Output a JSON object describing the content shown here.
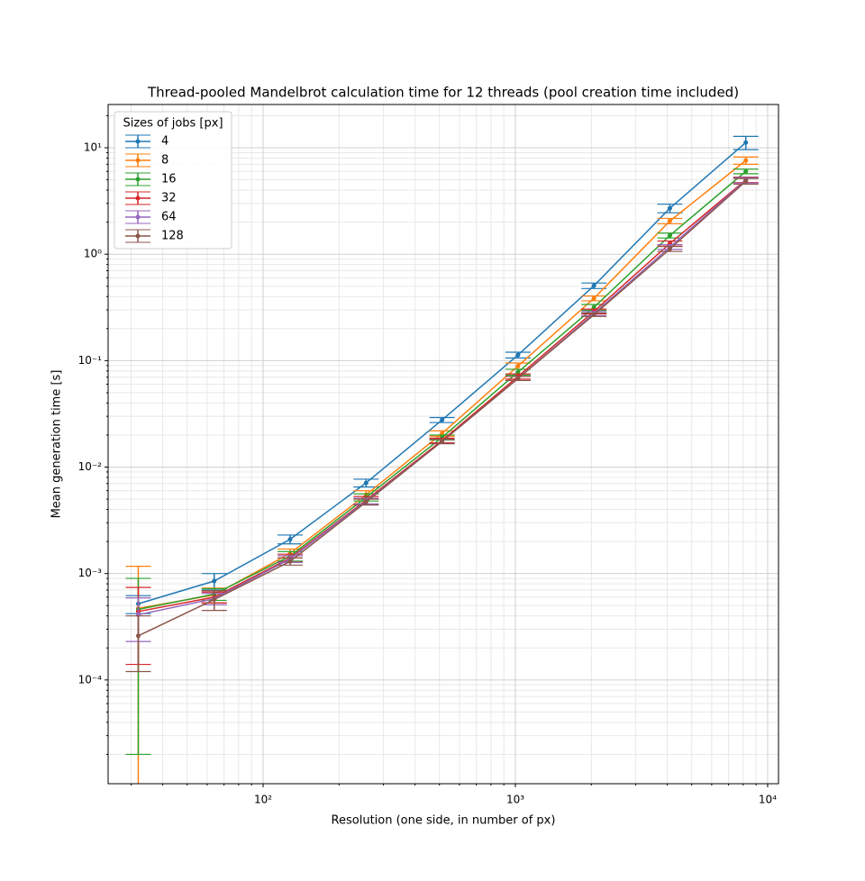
{
  "chart_data": {
    "type": "line",
    "title": "Thread-pooled Mandelbrot calculation time for 12 threads (pool creation time included)",
    "xlabel": "Resolution (one side, in number of px)",
    "ylabel": "Mean generation time [s]",
    "x": [
      32,
      64,
      128,
      256,
      512,
      1024,
      2048,
      4096,
      8192
    ],
    "series": [
      {
        "name": "4",
        "color": "#1f77b4",
        "values": [
          0.00052,
          0.00085,
          0.0021,
          0.0071,
          0.0277,
          0.113,
          0.506,
          2.7,
          11.2
        ],
        "errors": [
          0.0001,
          0.00015,
          0.0002,
          0.0006,
          0.0015,
          0.007,
          0.03,
          0.25,
          1.6
        ]
      },
      {
        "name": "8",
        "color": "#ff7f0e",
        "values": [
          0.00047,
          0.00063,
          0.00155,
          0.0055,
          0.0207,
          0.089,
          0.385,
          2.05,
          7.6
        ],
        "errors": [
          0.0007,
          0.0001,
          0.00015,
          0.0005,
          0.0012,
          0.006,
          0.02,
          0.12,
          0.6
        ]
      },
      {
        "name": "16",
        "color": "#2ca02c",
        "values": [
          0.00046,
          0.00064,
          0.00146,
          0.0052,
          0.019,
          0.078,
          0.317,
          1.5,
          6.0
        ],
        "errors": [
          0.00044,
          8e-05,
          0.00015,
          0.0004,
          0.001,
          0.005,
          0.02,
          0.08,
          0.3
        ]
      },
      {
        "name": "32",
        "color": "#d62728",
        "values": [
          0.00044,
          0.0006,
          0.0014,
          0.0049,
          0.0178,
          0.071,
          0.29,
          1.26,
          5.0
        ],
        "errors": [
          0.0003,
          7e-05,
          0.00012,
          0.0004,
          0.0009,
          0.004,
          0.015,
          0.07,
          0.3
        ]
      },
      {
        "name": "64",
        "color": "#9467bd",
        "values": [
          0.00041,
          0.00058,
          0.00137,
          0.0048,
          0.0174,
          0.068,
          0.277,
          1.17,
          4.95
        ],
        "errors": [
          0.00018,
          7e-05,
          0.0001,
          0.0003,
          0.0008,
          0.003,
          0.012,
          0.06,
          0.3
        ]
      },
      {
        "name": "128",
        "color": "#8c564b",
        "values": [
          0.00026,
          0.00057,
          0.0013,
          0.0047,
          0.0174,
          0.068,
          0.27,
          1.12,
          4.85
        ],
        "errors": [
          0.00014,
          0.00012,
          0.0001,
          0.0003,
          0.0008,
          0.003,
          0.01,
          0.06,
          0.3
        ]
      }
    ],
    "xscale": "log",
    "yscale": "log",
    "xlim": [
      24.3,
      11040
    ],
    "ylim": [
      1.06e-05,
      25.5
    ],
    "xticks": [
      {
        "value": 100,
        "label": "10²"
      },
      {
        "value": 1000,
        "label": "10³"
      },
      {
        "value": 10000,
        "label": "10⁴"
      }
    ],
    "yticks": [
      {
        "value": 0.0001,
        "label": "10⁻⁴"
      },
      {
        "value": 0.001,
        "label": "10⁻³"
      },
      {
        "value": 0.01,
        "label": "10⁻²"
      },
      {
        "value": 0.1,
        "label": "10⁻¹"
      },
      {
        "value": 1,
        "label": "10⁰"
      },
      {
        "value": 10,
        "label": "10¹"
      }
    ],
    "xminorticks": [
      30,
      40,
      50,
      60,
      70,
      80,
      90,
      200,
      300,
      400,
      500,
      600,
      700,
      800,
      900,
      2000,
      3000,
      4000,
      5000,
      6000,
      7000,
      8000,
      9000
    ],
    "yminorticks": [
      2e-05,
      3e-05,
      4e-05,
      5e-05,
      6e-05,
      7e-05,
      8e-05,
      9e-05,
      0.0002,
      0.0003,
      0.0004,
      0.0005,
      0.0006,
      0.0007,
      0.0008,
      0.0009,
      0.002,
      0.003,
      0.004,
      0.005,
      0.006,
      0.007,
      0.008,
      0.009,
      0.02,
      0.03,
      0.04,
      0.05,
      0.06,
      0.07,
      0.08,
      0.09,
      0.2,
      0.3,
      0.4,
      0.5,
      0.6,
      0.7,
      0.8,
      0.9,
      2,
      3,
      4,
      5,
      6,
      7,
      8,
      9,
      20
    ],
    "grid": true,
    "legend_title": "Sizes of jobs [px]",
    "legend_loc": "upper left"
  }
}
